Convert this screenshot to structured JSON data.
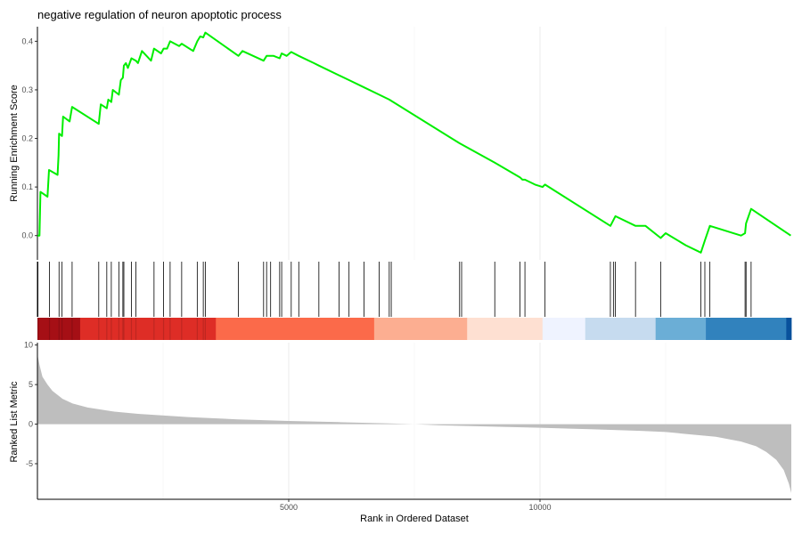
{
  "chart_data": {
    "type": "line",
    "title": "negative regulation of neuron apoptotic process",
    "grid": "vertical gridlines only",
    "panels": {
      "running_score": {
        "ylabel": "Running Enrichment Score",
        "yticks": [
          "0.0",
          "0.1",
          "0.2",
          "0.3",
          "0.4"
        ],
        "ylim": [
          -0.05,
          0.43
        ],
        "line_color": "#00ee00",
        "points": [
          [
            0,
            0.0
          ],
          [
            40,
            0.0
          ],
          [
            60,
            0.09
          ],
          [
            200,
            0.08
          ],
          [
            230,
            0.135
          ],
          [
            400,
            0.125
          ],
          [
            420,
            0.165
          ],
          [
            430,
            0.21
          ],
          [
            490,
            0.205
          ],
          [
            510,
            0.245
          ],
          [
            640,
            0.235
          ],
          [
            690,
            0.265
          ],
          [
            1220,
            0.23
          ],
          [
            1260,
            0.27
          ],
          [
            1380,
            0.262
          ],
          [
            1410,
            0.28
          ],
          [
            1470,
            0.275
          ],
          [
            1500,
            0.3
          ],
          [
            1620,
            0.29
          ],
          [
            1660,
            0.32
          ],
          [
            1700,
            0.325
          ],
          [
            1720,
            0.35
          ],
          [
            1760,
            0.355
          ],
          [
            1800,
            0.345
          ],
          [
            1870,
            0.365
          ],
          [
            1960,
            0.36
          ],
          [
            2000,
            0.355
          ],
          [
            2080,
            0.38
          ],
          [
            2260,
            0.36
          ],
          [
            2320,
            0.385
          ],
          [
            2460,
            0.375
          ],
          [
            2510,
            0.385
          ],
          [
            2580,
            0.385
          ],
          [
            2640,
            0.4
          ],
          [
            2820,
            0.39
          ],
          [
            2870,
            0.395
          ],
          [
            3100,
            0.38
          ],
          [
            3180,
            0.4
          ],
          [
            3240,
            0.41
          ],
          [
            3300,
            0.408
          ],
          [
            3340,
            0.418
          ],
          [
            4000,
            0.37
          ],
          [
            4080,
            0.38
          ],
          [
            4500,
            0.36
          ],
          [
            4560,
            0.37
          ],
          [
            4700,
            0.37
          ],
          [
            4820,
            0.365
          ],
          [
            4860,
            0.375
          ],
          [
            4960,
            0.37
          ],
          [
            5050,
            0.378
          ],
          [
            5200,
            0.37
          ],
          [
            5500,
            0.355
          ],
          [
            5600,
            0.35
          ],
          [
            6000,
            0.33
          ],
          [
            6200,
            0.32
          ],
          [
            6500,
            0.305
          ],
          [
            6800,
            0.29
          ],
          [
            7000,
            0.28
          ],
          [
            8400,
            0.19
          ],
          [
            9100,
            0.15
          ],
          [
            9600,
            0.12
          ],
          [
            9650,
            0.115
          ],
          [
            9700,
            0.115
          ],
          [
            9900,
            0.105
          ],
          [
            10050,
            0.1
          ],
          [
            10100,
            0.105
          ],
          [
            11400,
            0.02
          ],
          [
            11500,
            0.04
          ],
          [
            11900,
            0.02
          ],
          [
            12100,
            0.02
          ],
          [
            12400,
            -0.005
          ],
          [
            12500,
            0.005
          ],
          [
            12900,
            -0.02
          ],
          [
            13200,
            -0.035
          ],
          [
            13280,
            -0.01
          ],
          [
            13380,
            0.02
          ],
          [
            14000,
            0.0
          ],
          [
            14080,
            0.005
          ],
          [
            14100,
            0.025
          ],
          [
            14200,
            0.055
          ],
          [
            14990,
            0.0
          ]
        ]
      },
      "gene_hits": {
        "color": "#000000",
        "positions": [
          10,
          240,
          430,
          490,
          690,
          1220,
          1380,
          1470,
          1620,
          1700,
          1720,
          1870,
          1960,
          2320,
          2510,
          2640,
          2870,
          3180,
          3300,
          3340,
          4000,
          4500,
          4560,
          4640,
          4820,
          4860,
          5050,
          5200,
          5600,
          6000,
          6200,
          6500,
          6800,
          7000,
          7040,
          8400,
          8440,
          9100,
          9600,
          9700,
          10100,
          11400,
          11460,
          11500,
          11900,
          12400,
          13200,
          13280,
          13380,
          14080,
          14100,
          14200
        ]
      },
      "rank_colors": {
        "segments": [
          [
            0,
            850,
            "#a50f15"
          ],
          [
            850,
            3550,
            "#de2d26"
          ],
          [
            3550,
            6700,
            "#fb6a4a"
          ],
          [
            6700,
            8550,
            "#fcae91"
          ],
          [
            8550,
            10050,
            "#fee0d2"
          ],
          [
            10050,
            10900,
            "#eff3ff"
          ],
          [
            10900,
            12300,
            "#c6dbef"
          ],
          [
            12300,
            13300,
            "#6baed6"
          ],
          [
            13300,
            14900,
            "#3182bd"
          ],
          [
            14900,
            15000,
            "#08519c"
          ]
        ]
      },
      "ranked_metric": {
        "ylabel": "Ranked List Metric",
        "yticks": [
          "10",
          "5",
          "0",
          "-5"
        ],
        "ylim": [
          -9.5,
          10.3
        ],
        "fill_color": "#bebebe",
        "curve": [
          [
            0,
            8.8
          ],
          [
            40,
            7.5
          ],
          [
            100,
            6.0
          ],
          [
            200,
            5.0
          ],
          [
            300,
            4.2
          ],
          [
            500,
            3.2
          ],
          [
            700,
            2.6
          ],
          [
            1000,
            2.1
          ],
          [
            1500,
            1.6
          ],
          [
            2000,
            1.3
          ],
          [
            3000,
            0.9
          ],
          [
            4000,
            0.6
          ],
          [
            5000,
            0.4
          ],
          [
            6000,
            0.25
          ],
          [
            7000,
            0.1
          ],
          [
            7500,
            0.0
          ],
          [
            8000,
            -0.15
          ],
          [
            9000,
            -0.3
          ],
          [
            10000,
            -0.45
          ],
          [
            11000,
            -0.65
          ],
          [
            12000,
            -0.85
          ],
          [
            12500,
            -1.0
          ],
          [
            13000,
            -1.3
          ],
          [
            13500,
            -1.6
          ],
          [
            14000,
            -2.2
          ],
          [
            14300,
            -2.8
          ],
          [
            14500,
            -3.5
          ],
          [
            14700,
            -4.5
          ],
          [
            14850,
            -5.8
          ],
          [
            14950,
            -7.5
          ],
          [
            15000,
            -8.7
          ]
        ]
      }
    },
    "x": {
      "label": "Rank in Ordered Dataset",
      "ticks": [
        5000,
        10000
      ],
      "tick_labels": [
        "5000",
        "10000"
      ],
      "range": [
        0,
        15000
      ]
    }
  }
}
